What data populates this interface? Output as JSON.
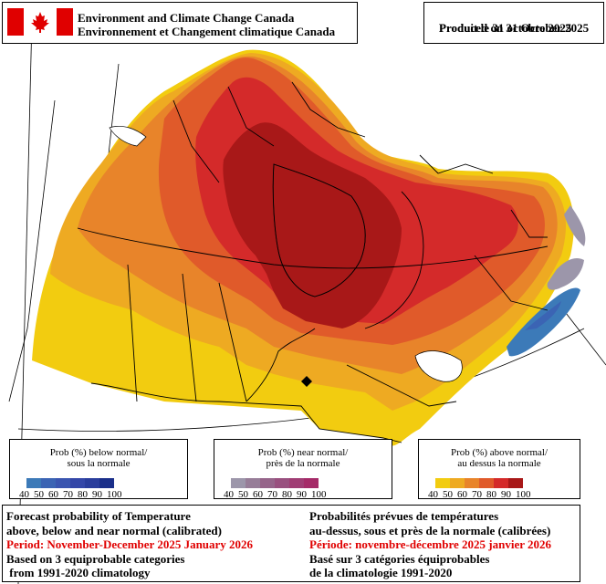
{
  "header": {
    "org_en": "Environment and Climate Change Canada",
    "org_fr": "Environnement et Changement climatique Canada"
  },
  "produced": {
    "en": "Produced on 31 October 2025",
    "fr": "Produit le 31 octobre 2025"
  },
  "legends": [
    {
      "title_en": "Prob (%) below normal/",
      "title_fr": "sous la normale",
      "ticks": [
        "40",
        "50",
        "60",
        "70",
        "80",
        "90",
        "100"
      ],
      "colors": [
        "#3c7ab8",
        "#3b64b4",
        "#3a55b0",
        "#3447a8",
        "#2a3d9c",
        "#1a2f8a"
      ]
    },
    {
      "title_en": "Prob (%) near normal/",
      "title_fr": "près de la normale",
      "ticks": [
        "40",
        "50",
        "60",
        "70",
        "80",
        "90",
        "100"
      ],
      "colors": [
        "#9c96aa",
        "#977d98",
        "#96648a",
        "#99507f",
        "#a03c74",
        "#a52a68"
      ]
    },
    {
      "title_en": "Prob (%) above normal/",
      "title_fr": "au dessus la normale",
      "ticks": [
        "40",
        "50",
        "60",
        "70",
        "80",
        "90",
        "100"
      ],
      "colors": [
        "#f2cc10",
        "#eeaa22",
        "#e8842a",
        "#e05a2a",
        "#d42a2a",
        "#a81818"
      ]
    }
  ],
  "footer": {
    "en": {
      "line1": "Forecast probability of Temperature",
      "line2": "above, below and near normal (calibrated)",
      "period": "Period: November-December 2025 January 2026",
      "line4": "Based on 3 equiprobable categories",
      "line5": " from 1991-2020 climatology"
    },
    "fr": {
      "line1": "Probabilités prévues de températures",
      "line2": "au-dessus, sous et près de la normale (calibrées)",
      "period": "Période: novembre-décembre 2025 janvier 2026",
      "line4": "Basé sur 3 catégories équiprobables",
      "line5": "de la climatologie 1991-2020"
    }
  },
  "map": {
    "region": "Canada",
    "variable": "Temperature",
    "dominant_category": "above normal",
    "colors": {
      "p40": "#f2cc10",
      "p50": "#eeaa22",
      "p60": "#e8842a",
      "p70": "#e05a2a",
      "p80": "#d42a2a",
      "p90": "#a81818",
      "below": "#3c7ab8",
      "near": "#9c96aa"
    }
  }
}
